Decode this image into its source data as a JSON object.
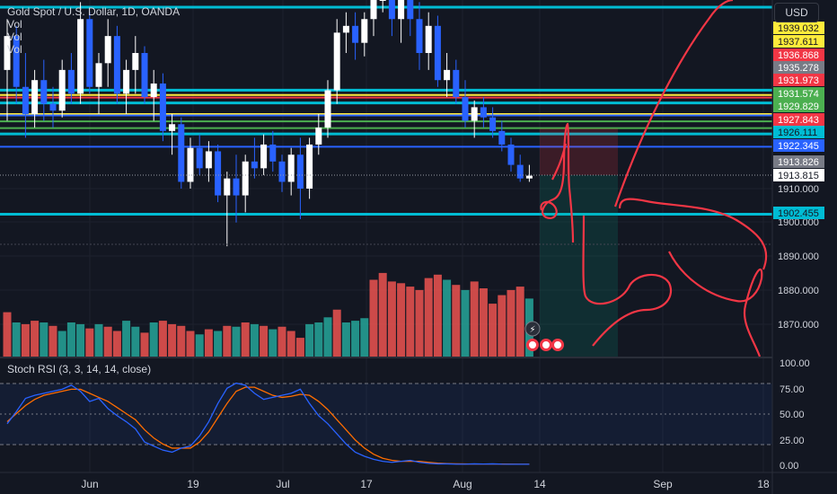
{
  "legend": {
    "symbol": "Gold Spot / U.S. Dollar, 1D, OANDA",
    "vol_lines": [
      "Vol",
      "Vol",
      "Vol"
    ]
  },
  "currency_button": "USD",
  "price_scale": {
    "ticks": [
      "1910.000",
      "1900.000",
      "1890.000",
      "1880.000",
      "1870.000"
    ],
    "labels": [
      {
        "text": "1939.032",
        "bg": "#ffeb3b",
        "fg": "#131722"
      },
      {
        "text": "1937.611",
        "bg": "#ffeb3b",
        "fg": "#131722"
      },
      {
        "text": "1936.868",
        "bg": "#f23645",
        "fg": "#ffffff"
      },
      {
        "text": "1935.278",
        "bg": "#787b86",
        "fg": "#ffffff"
      },
      {
        "text": "1931.973",
        "bg": "#f23645",
        "fg": "#ffffff"
      },
      {
        "text": "1931.574",
        "bg": "#4caf50",
        "fg": "#ffffff"
      },
      {
        "text": "1929.829",
        "bg": "#4caf50",
        "fg": "#ffffff"
      },
      {
        "text": "1927.843",
        "bg": "#f23645",
        "fg": "#ffffff"
      },
      {
        "text": "1926.111",
        "bg": "#00bcd4",
        "fg": "#131722"
      },
      {
        "text": "1922.345",
        "bg": "#2962ff",
        "fg": "#ffffff"
      },
      {
        "text": "1913.826",
        "bg": "#787b86",
        "fg": "#ffffff"
      },
      {
        "text": "1913.815",
        "bg": "#ffffff",
        "fg": "#131722"
      },
      {
        "text": "1902.455",
        "bg": "#00bcd4",
        "fg": "#131722"
      }
    ]
  },
  "rsi": {
    "title": "Stoch RSI (3, 3, 14, 14, close)",
    "ticks": [
      "100.00",
      "75.00",
      "50.00",
      "25.00",
      "0.00"
    ]
  },
  "time_axis": [
    "Jun",
    "19",
    "Jul",
    "17",
    "Aug",
    "14",
    "Sep",
    "18"
  ],
  "chart_data": {
    "type": "candlestick",
    "title": "Gold Spot / U.S. Dollar, 1D, OANDA",
    "y_range_visible": [
      1862,
      1945
    ],
    "horizontal_levels": [
      {
        "price": 1939.032,
        "color": "#00bcd4"
      },
      {
        "price": 1937.611,
        "color": "#ffeb3b"
      },
      {
        "price": 1936.868,
        "color": "#f23645"
      },
      {
        "price": 1935.278,
        "color": "#00bcd4"
      },
      {
        "price": 1931.973,
        "color": "#ffeb3b"
      },
      {
        "price": 1931.574,
        "color": "#2962ff"
      },
      {
        "price": 1929.829,
        "color": "#4caf50"
      },
      {
        "price": 1927.843,
        "color": "#4caf50"
      },
      {
        "price": 1926.111,
        "color": "#00bcd4"
      },
      {
        "price": 1922.345,
        "color": "#2962ff"
      },
      {
        "price": 1902.455,
        "color": "#00bcd4"
      },
      {
        "price": 1913.815,
        "color": "#ffffff"
      }
    ],
    "last_price": 1913.815,
    "candles": [
      {
        "o": 1945,
        "h": 1960,
        "l": 1930,
        "c": 1955
      },
      {
        "o": 1955,
        "h": 1958,
        "l": 1935,
        "c": 1940
      },
      {
        "o": 1940,
        "h": 1950,
        "l": 1925,
        "c": 1932
      },
      {
        "o": 1932,
        "h": 1945,
        "l": 1928,
        "c": 1942
      },
      {
        "o": 1942,
        "h": 1948,
        "l": 1930,
        "c": 1935
      },
      {
        "o": 1935,
        "h": 1940,
        "l": 1928,
        "c": 1933
      },
      {
        "o": 1933,
        "h": 1948,
        "l": 1931,
        "c": 1945
      },
      {
        "o": 1945,
        "h": 1950,
        "l": 1935,
        "c": 1938
      },
      {
        "o": 1938,
        "h": 1965,
        "l": 1935,
        "c": 1960
      },
      {
        "o": 1960,
        "h": 1962,
        "l": 1938,
        "c": 1940
      },
      {
        "o": 1940,
        "h": 1950,
        "l": 1932,
        "c": 1947
      },
      {
        "o": 1947,
        "h": 1960,
        "l": 1940,
        "c": 1955
      },
      {
        "o": 1955,
        "h": 1958,
        "l": 1935,
        "c": 1938
      },
      {
        "o": 1938,
        "h": 1948,
        "l": 1932,
        "c": 1945
      },
      {
        "o": 1945,
        "h": 1955,
        "l": 1938,
        "c": 1950
      },
      {
        "o": 1950,
        "h": 1952,
        "l": 1935,
        "c": 1937
      },
      {
        "o": 1937,
        "h": 1945,
        "l": 1930,
        "c": 1941
      },
      {
        "o": 1941,
        "h": 1944,
        "l": 1924,
        "c": 1927
      },
      {
        "o": 1927,
        "h": 1932,
        "l": 1920,
        "c": 1929
      },
      {
        "o": 1929,
        "h": 1931,
        "l": 1910,
        "c": 1912
      },
      {
        "o": 1912,
        "h": 1925,
        "l": 1910,
        "c": 1922
      },
      {
        "o": 1922,
        "h": 1926,
        "l": 1914,
        "c": 1916
      },
      {
        "o": 1916,
        "h": 1924,
        "l": 1912,
        "c": 1921
      },
      {
        "o": 1921,
        "h": 1923,
        "l": 1906,
        "c": 1908
      },
      {
        "o": 1908,
        "h": 1915,
        "l": 1893,
        "c": 1913
      },
      {
        "o": 1913,
        "h": 1920,
        "l": 1900,
        "c": 1908
      },
      {
        "o": 1908,
        "h": 1920,
        "l": 1903,
        "c": 1918
      },
      {
        "o": 1918,
        "h": 1925,
        "l": 1913,
        "c": 1916
      },
      {
        "o": 1916,
        "h": 1926,
        "l": 1914,
        "c": 1923
      },
      {
        "o": 1923,
        "h": 1927,
        "l": 1915,
        "c": 1918
      },
      {
        "o": 1918,
        "h": 1920,
        "l": 1909,
        "c": 1912
      },
      {
        "o": 1912,
        "h": 1922,
        "l": 1908,
        "c": 1920
      },
      {
        "o": 1920,
        "h": 1925,
        "l": 1901,
        "c": 1910
      },
      {
        "o": 1910,
        "h": 1925,
        "l": 1907,
        "c": 1923
      },
      {
        "o": 1923,
        "h": 1932,
        "l": 1920,
        "c": 1928
      },
      {
        "o": 1928,
        "h": 1942,
        "l": 1925,
        "c": 1939
      },
      {
        "o": 1939,
        "h": 1960,
        "l": 1935,
        "c": 1956
      },
      {
        "o": 1956,
        "h": 1962,
        "l": 1950,
        "c": 1958
      },
      {
        "o": 1958,
        "h": 1962,
        "l": 1948,
        "c": 1953
      },
      {
        "o": 1953,
        "h": 1962,
        "l": 1949,
        "c": 1960
      },
      {
        "o": 1960,
        "h": 1972,
        "l": 1955,
        "c": 1968
      },
      {
        "o": 1968,
        "h": 1975,
        "l": 1962,
        "c": 1970
      },
      {
        "o": 1970,
        "h": 1974,
        "l": 1955,
        "c": 1960
      },
      {
        "o": 1960,
        "h": 1970,
        "l": 1953,
        "c": 1966
      },
      {
        "o": 1966,
        "h": 1972,
        "l": 1955,
        "c": 1960
      },
      {
        "o": 1960,
        "h": 1965,
        "l": 1945,
        "c": 1950
      },
      {
        "o": 1950,
        "h": 1962,
        "l": 1945,
        "c": 1958
      },
      {
        "o": 1958,
        "h": 1961,
        "l": 1940,
        "c": 1942
      },
      {
        "o": 1942,
        "h": 1950,
        "l": 1937,
        "c": 1945
      },
      {
        "o": 1945,
        "h": 1948,
        "l": 1935,
        "c": 1937
      },
      {
        "o": 1937,
        "h": 1942,
        "l": 1928,
        "c": 1930
      },
      {
        "o": 1930,
        "h": 1936,
        "l": 1925,
        "c": 1934
      },
      {
        "o": 1934,
        "h": 1937,
        "l": 1928,
        "c": 1931
      },
      {
        "o": 1931,
        "h": 1934,
        "l": 1925,
        "c": 1927
      },
      {
        "o": 1927,
        "h": 1930,
        "l": 1921,
        "c": 1923
      },
      {
        "o": 1923,
        "h": 1925,
        "l": 1915,
        "c": 1917
      },
      {
        "o": 1917,
        "h": 1920,
        "l": 1912,
        "c": 1913
      },
      {
        "o": 1913,
        "h": 1917,
        "l": 1912,
        "c": 1913.815
      }
    ],
    "volume": [
      {
        "v": 52,
        "up": false
      },
      {
        "v": 40,
        "up": true
      },
      {
        "v": 38,
        "up": false
      },
      {
        "v": 42,
        "up": false
      },
      {
        "v": 40,
        "up": true
      },
      {
        "v": 36,
        "up": false
      },
      {
        "v": 30,
        "up": true
      },
      {
        "v": 40,
        "up": true
      },
      {
        "v": 38,
        "up": true
      },
      {
        "v": 33,
        "up": false
      },
      {
        "v": 38,
        "up": true
      },
      {
        "v": 35,
        "up": false
      },
      {
        "v": 30,
        "up": false
      },
      {
        "v": 42,
        "up": true
      },
      {
        "v": 35,
        "up": true
      },
      {
        "v": 28,
        "up": false
      },
      {
        "v": 40,
        "up": true
      },
      {
        "v": 42,
        "up": false
      },
      {
        "v": 38,
        "up": false
      },
      {
        "v": 36,
        "up": false
      },
      {
        "v": 30,
        "up": false
      },
      {
        "v": 26,
        "up": true
      },
      {
        "v": 32,
        "up": false
      },
      {
        "v": 30,
        "up": true
      },
      {
        "v": 36,
        "up": false
      },
      {
        "v": 35,
        "up": true
      },
      {
        "v": 40,
        "up": false
      },
      {
        "v": 38,
        "up": true
      },
      {
        "v": 36,
        "up": false
      },
      {
        "v": 32,
        "up": true
      },
      {
        "v": 35,
        "up": false
      },
      {
        "v": 30,
        "up": false
      },
      {
        "v": 22,
        "up": false
      },
      {
        "v": 38,
        "up": true
      },
      {
        "v": 40,
        "up": true
      },
      {
        "v": 46,
        "up": true
      },
      {
        "v": 55,
        "up": false
      },
      {
        "v": 40,
        "up": true
      },
      {
        "v": 42,
        "up": true
      },
      {
        "v": 45,
        "up": true
      },
      {
        "v": 90,
        "up": false
      },
      {
        "v": 98,
        "up": false
      },
      {
        "v": 88,
        "up": false
      },
      {
        "v": 86,
        "up": false
      },
      {
        "v": 82,
        "up": false
      },
      {
        "v": 78,
        "up": false
      },
      {
        "v": 92,
        "up": false
      },
      {
        "v": 96,
        "up": false
      },
      {
        "v": 90,
        "up": true
      },
      {
        "v": 84,
        "up": false
      },
      {
        "v": 78,
        "up": true
      },
      {
        "v": 88,
        "up": false
      },
      {
        "v": 80,
        "up": false
      },
      {
        "v": 62,
        "up": false
      },
      {
        "v": 72,
        "up": false
      },
      {
        "v": 78,
        "up": false
      },
      {
        "v": 82,
        "up": false
      },
      {
        "v": 68,
        "up": true
      }
    ],
    "stoch_rsi": {
      "k": [
        40,
        52,
        65,
        68,
        70,
        72,
        74,
        78,
        72,
        62,
        65,
        55,
        48,
        42,
        35,
        22,
        18,
        14,
        12,
        16,
        18,
        28,
        42,
        60,
        75,
        80,
        78,
        70,
        64,
        66,
        68,
        70,
        74,
        60,
        48,
        40,
        30,
        20,
        12,
        8,
        5,
        3,
        2,
        3,
        4,
        2,
        1,
        0.5,
        0.5,
        0.2,
        0.2,
        0.5,
        0.3,
        0.5,
        0.2,
        0.1,
        0.1,
        0.1
      ],
      "d": [
        42,
        50,
        58,
        64,
        68,
        70,
        72,
        74,
        74,
        70,
        66,
        62,
        56,
        50,
        44,
        34,
        26,
        20,
        16,
        16,
        16,
        22,
        32,
        46,
        60,
        72,
        76,
        76,
        72,
        68,
        66,
        67,
        69,
        68,
        62,
        54,
        44,
        34,
        24,
        16,
        10,
        6,
        4,
        3,
        3,
        3,
        2,
        1.2,
        0.8,
        0.5,
        0.4,
        0.3,
        0.3,
        0.3,
        0.3,
        0.2,
        0.1,
        0.1
      ]
    }
  }
}
